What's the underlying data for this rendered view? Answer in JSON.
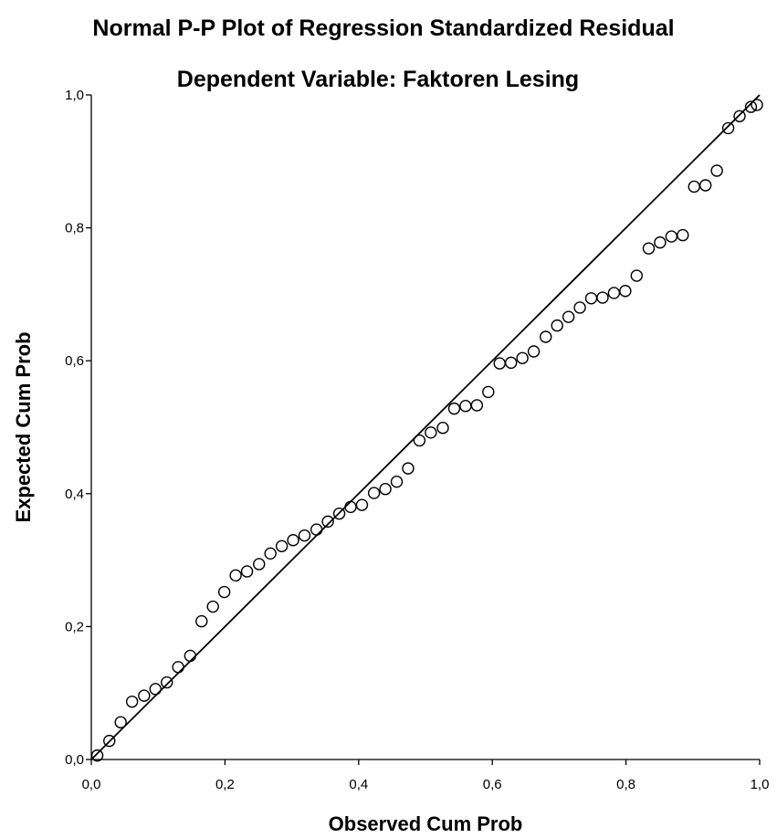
{
  "chart_data": {
    "type": "scatter",
    "title": "Normal P-P Plot of Regression Standardized Residual",
    "subtitle": "Dependent Variable: Faktoren Lesing",
    "xlabel": "Observed Cum Prob",
    "ylabel": "Expected Cum Prob",
    "xlim": [
      0,
      1
    ],
    "ylim": [
      0,
      1
    ],
    "xticks": [
      "0,0",
      "0,2",
      "0,4",
      "0,6",
      "0,8",
      "1,0"
    ],
    "yticks": [
      "0,0",
      "0,2",
      "0,4",
      "0,6",
      "0,8",
      "1,0"
    ],
    "grid": false,
    "reference_line": {
      "from": [
        0,
        0
      ],
      "to": [
        1,
        1
      ]
    },
    "marker": "open-circle",
    "points": [
      [
        0.009,
        0.006
      ],
      [
        0.027,
        0.028
      ],
      [
        0.044,
        0.056
      ],
      [
        0.061,
        0.087
      ],
      [
        0.079,
        0.096
      ],
      [
        0.096,
        0.106
      ],
      [
        0.113,
        0.116
      ],
      [
        0.13,
        0.139
      ],
      [
        0.148,
        0.156
      ],
      [
        0.165,
        0.208
      ],
      [
        0.182,
        0.23
      ],
      [
        0.199,
        0.252
      ],
      [
        0.216,
        0.277
      ],
      [
        0.233,
        0.283
      ],
      [
        0.251,
        0.294
      ],
      [
        0.268,
        0.31
      ],
      [
        0.285,
        0.321
      ],
      [
        0.302,
        0.33
      ],
      [
        0.319,
        0.337
      ],
      [
        0.337,
        0.346
      ],
      [
        0.354,
        0.358
      ],
      [
        0.371,
        0.37
      ],
      [
        0.388,
        0.38
      ],
      [
        0.405,
        0.383
      ],
      [
        0.423,
        0.401
      ],
      [
        0.44,
        0.407
      ],
      [
        0.457,
        0.418
      ],
      [
        0.474,
        0.438
      ],
      [
        0.491,
        0.48
      ],
      [
        0.508,
        0.492
      ],
      [
        0.526,
        0.499
      ],
      [
        0.543,
        0.528
      ],
      [
        0.56,
        0.532
      ],
      [
        0.577,
        0.533
      ],
      [
        0.594,
        0.553
      ],
      [
        0.611,
        0.596
      ],
      [
        0.628,
        0.597
      ],
      [
        0.645,
        0.604
      ],
      [
        0.662,
        0.614
      ],
      [
        0.68,
        0.636
      ],
      [
        0.697,
        0.653
      ],
      [
        0.714,
        0.666
      ],
      [
        0.731,
        0.68
      ],
      [
        0.748,
        0.694
      ],
      [
        0.765,
        0.695
      ],
      [
        0.782,
        0.702
      ],
      [
        0.799,
        0.705
      ],
      [
        0.816,
        0.728
      ],
      [
        0.834,
        0.769
      ],
      [
        0.851,
        0.778
      ],
      [
        0.868,
        0.787
      ],
      [
        0.885,
        0.789
      ],
      [
        0.902,
        0.862
      ],
      [
        0.919,
        0.864
      ],
      [
        0.936,
        0.886
      ],
      [
        0.953,
        0.95
      ],
      [
        0.97,
        0.968
      ],
      [
        0.987,
        0.982
      ],
      [
        0.996,
        0.985
      ]
    ]
  }
}
